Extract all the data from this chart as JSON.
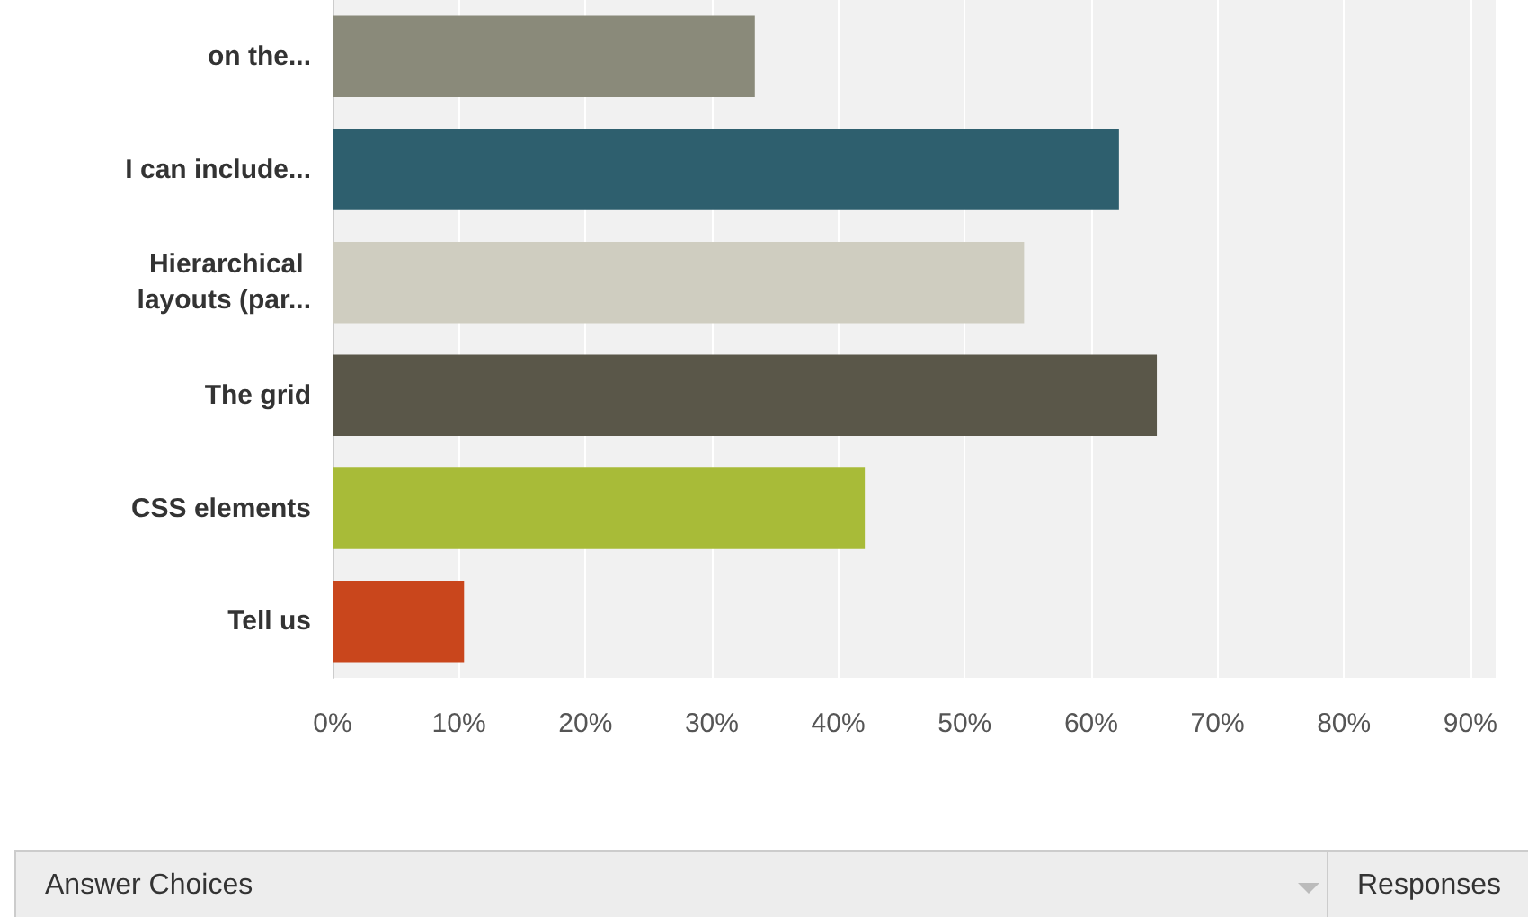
{
  "chart_data": {
    "type": "bar",
    "orientation": "horizontal",
    "categories": [
      "on the...",
      "I can include...",
      "Hierarchical layouts (par...",
      "The grid",
      "CSS elements",
      "Tell us"
    ],
    "values": [
      33.4,
      62.2,
      54.7,
      65.2,
      42.1,
      10.4
    ],
    "colors": [
      "#8a8a7a",
      "#2e5f6e",
      "#cfcdc0",
      "#5a5749",
      "#a8bb38",
      "#c9461c"
    ],
    "xlim": [
      0,
      92
    ],
    "xticks": [
      {
        "value": 0,
        "label": "0%"
      },
      {
        "value": 10,
        "label": "10%"
      },
      {
        "value": 20,
        "label": "20%"
      },
      {
        "value": 30,
        "label": "30%"
      },
      {
        "value": 40,
        "label": "40%"
      },
      {
        "value": 50,
        "label": "50%"
      },
      {
        "value": 60,
        "label": "60%"
      },
      {
        "value": 70,
        "label": "70%"
      },
      {
        "value": 80,
        "label": "80%"
      },
      {
        "value": 90,
        "label": "90%"
      }
    ],
    "grid": "x",
    "annotations": [
      "Answer Choices",
      "Responses"
    ]
  }
}
